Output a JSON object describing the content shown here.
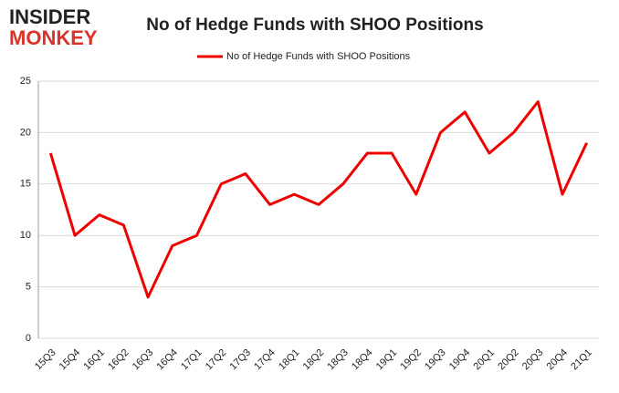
{
  "logo": {
    "line1": "INSIDER",
    "line2": "MONKEY"
  },
  "chart_data": {
    "type": "line",
    "title": "No of Hedge Funds with SHOO Positions",
    "categories": [
      "15Q3",
      "15Q4",
      "16Q1",
      "16Q2",
      "16Q3",
      "16Q4",
      "17Q1",
      "17Q2",
      "17Q3",
      "17Q4",
      "18Q1",
      "18Q2",
      "18Q3",
      "18Q4",
      "19Q1",
      "19Q2",
      "19Q3",
      "19Q4",
      "20Q1",
      "20Q2",
      "20Q3",
      "20Q4",
      "21Q1"
    ],
    "series": [
      {
        "name": "No of Hedge Funds with SHOO Positions",
        "color": "#ee0000",
        "values": [
          18,
          10,
          12,
          11,
          4,
          9,
          10,
          15,
          16,
          13,
          14,
          13,
          15,
          18,
          18,
          14,
          20,
          22,
          18,
          20,
          23,
          14,
          19
        ]
      }
    ],
    "ylim": [
      0,
      25
    ],
    "yticks": [
      0,
      5,
      10,
      15,
      20,
      25
    ],
    "grid": true,
    "legend": "top"
  }
}
